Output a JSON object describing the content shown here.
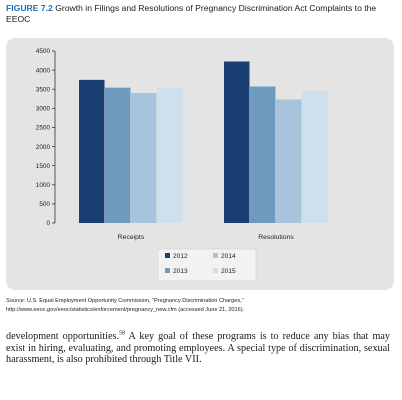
{
  "figure": {
    "label": "FIGURE 7.2",
    "caption": "Growth in Filings and Resolutions of Pregnancy Discrimination Act Complaints to the EEOC"
  },
  "chart_data": {
    "type": "bar",
    "categories": [
      "Receipts",
      "Resolutions"
    ],
    "series": [
      {
        "name": "2012",
        "color": "#1b3f73",
        "values": [
          3745,
          4225
        ]
      },
      {
        "name": "2013",
        "color": "#6f9ac0",
        "values": [
          3541,
          3570
        ]
      },
      {
        "name": "2014",
        "color": "#a8c4dc",
        "values": [
          3400,
          3230
        ]
      },
      {
        "name": "2015",
        "color": "#cfe0ec",
        "values": [
          3543,
          3450
        ]
      }
    ],
    "ylim": [
      0,
      4500
    ],
    "yticks": [
      "0",
      "500",
      "1000",
      "1500",
      "2000",
      "2500",
      "3000",
      "3500",
      "4000",
      "4500"
    ],
    "ytick_values": [
      0,
      500,
      1000,
      1500,
      2000,
      2500,
      3000,
      3500,
      4000,
      4500
    ],
    "legend_position": "bottom-center",
    "grid": false,
    "background": "#e4e4e4"
  },
  "source": {
    "label": "Source:",
    "text": "U.S. Equal Employment Opportunity Commission, “Pregnancy Discrimination Charges,” http://www.eeoc.gov/eeoc/statistics/enforcement/pregnancy_new.cfm (accessed June 21, 2016)."
  },
  "body": {
    "part1": "development opportunities.",
    "footnote": "58",
    "part2": " A key goal of these programs is to reduce any bias that may exist in hiring, evaluating, and promoting employees. A special type of discrimination, sexual harassment, is also prohibited through Title VII."
  }
}
